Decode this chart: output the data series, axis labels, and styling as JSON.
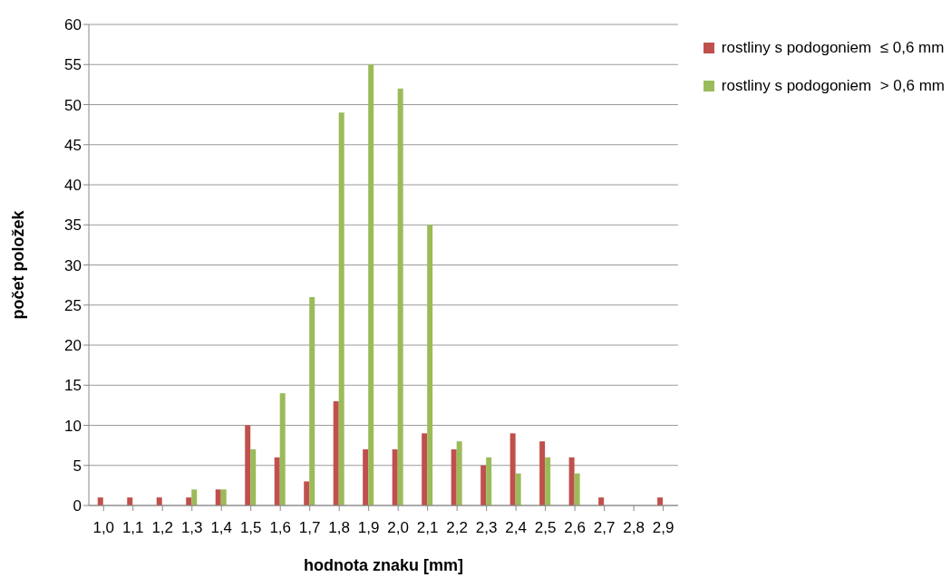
{
  "chart_data": {
    "type": "bar",
    "xlabel": "hodnota znaku [mm]",
    "ylabel": "počet položek",
    "categories": [
      "1,0",
      "1,1",
      "1,2",
      "1,3",
      "1,4",
      "1,5",
      "1,6",
      "1,7",
      "1,8",
      "1,9",
      "2,0",
      "2,1",
      "2,2",
      "2,3",
      "2,4",
      "2,5",
      "2,6",
      "2,7",
      "2,8",
      "2,9"
    ],
    "series": [
      {
        "name": "rostliny s podogoniem  ≤ 0,6 mm",
        "color": "#c0504d",
        "values": [
          1,
          1,
          1,
          1,
          2,
          10,
          6,
          3,
          13,
          7,
          7,
          9,
          7,
          5,
          9,
          8,
          6,
          1,
          0,
          1
        ]
      },
      {
        "name": "rostliny s podogoniem  > 0,6 mm",
        "color": "#9bbb59",
        "values": [
          0,
          0,
          0,
          2,
          2,
          7,
          14,
          26,
          49,
          55,
          52,
          35,
          8,
          6,
          4,
          6,
          4,
          0,
          0,
          0
        ]
      }
    ],
    "ylim": [
      0,
      60
    ],
    "yticks": [
      0,
      5,
      10,
      15,
      20,
      25,
      30,
      35,
      40,
      45,
      50,
      55,
      60
    ],
    "grid": "y",
    "legend": "top right"
  }
}
